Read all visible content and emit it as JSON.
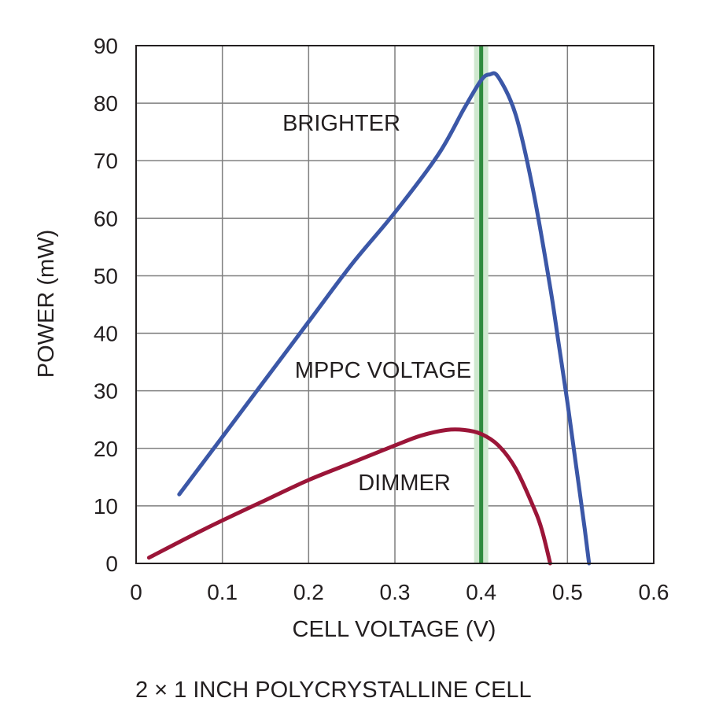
{
  "chart_data": {
    "type": "line",
    "xlabel": "CELL VOLTAGE (V)",
    "ylabel": "POWER (mW)",
    "xlim": [
      0,
      0.6
    ],
    "ylim": [
      0,
      90
    ],
    "x_ticks": [
      "0",
      "0.1",
      "0.2",
      "0.3",
      "0.4",
      "0.5",
      "0.6"
    ],
    "y_ticks": [
      "0",
      "10",
      "20",
      "30",
      "40",
      "50",
      "60",
      "70",
      "80",
      "90"
    ],
    "grid": true,
    "series": [
      {
        "name": "BRIGHTER",
        "color": "#3b57a7",
        "points": [
          [
            0.05,
            12
          ],
          [
            0.1,
            22
          ],
          [
            0.15,
            32
          ],
          [
            0.2,
            42
          ],
          [
            0.25,
            52
          ],
          [
            0.3,
            61
          ],
          [
            0.35,
            71
          ],
          [
            0.38,
            79
          ],
          [
            0.4,
            84
          ],
          [
            0.41,
            85
          ],
          [
            0.42,
            84.5
          ],
          [
            0.44,
            78
          ],
          [
            0.46,
            65
          ],
          [
            0.48,
            48
          ],
          [
            0.49,
            38
          ],
          [
            0.5,
            28
          ],
          [
            0.51,
            17
          ],
          [
            0.52,
            6
          ],
          [
            0.525,
            0
          ]
        ]
      },
      {
        "name": "DIMMER",
        "color": "#9b1538",
        "points": [
          [
            0.015,
            1
          ],
          [
            0.08,
            6
          ],
          [
            0.15,
            11
          ],
          [
            0.2,
            14.5
          ],
          [
            0.25,
            17.5
          ],
          [
            0.3,
            20.5
          ],
          [
            0.33,
            22.2
          ],
          [
            0.36,
            23.2
          ],
          [
            0.38,
            23.2
          ],
          [
            0.4,
            22.5
          ],
          [
            0.42,
            20.5
          ],
          [
            0.44,
            16.5
          ],
          [
            0.46,
            10
          ],
          [
            0.47,
            6
          ],
          [
            0.48,
            0
          ]
        ]
      }
    ],
    "mppc_voltage": 0.4,
    "annotations": [
      "BRIGHTER",
      "MPPC VOLTAGE",
      "DIMMER"
    ]
  },
  "caption": "2 × 1 INCH POLYCRYSTALLINE CELL",
  "colors": {
    "grid": "#7f7f7f",
    "frame": "#231f20",
    "mppc_line": "#2e8b3e",
    "mppc_band": "#cfe8cf"
  }
}
